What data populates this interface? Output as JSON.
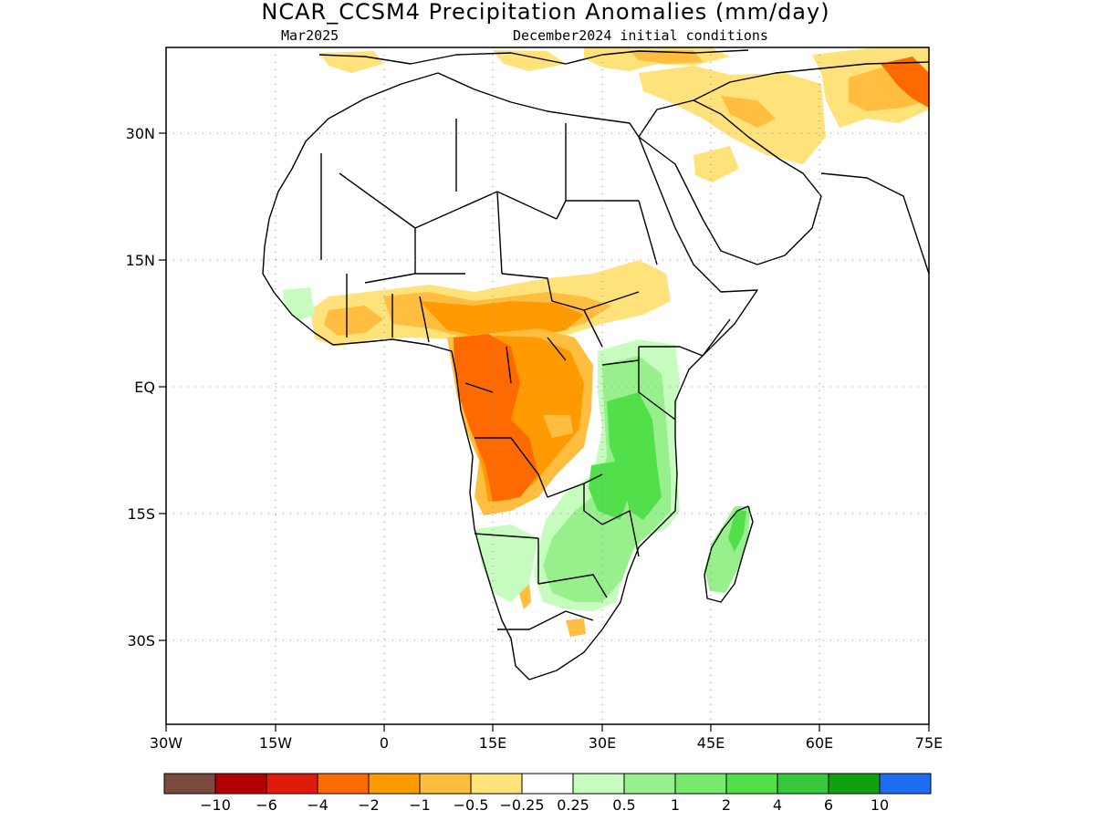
{
  "title": "NCAR_CCSM4 Precipitation Anomalies (mm/day)",
  "subtitle_left": "Mar2025",
  "subtitle_right": "December2024 initial conditions",
  "x_ticks": [
    "30W",
    "15W",
    "0",
    "15E",
    "30E",
    "45E",
    "60E",
    "75E"
  ],
  "y_ticks": [
    "30N",
    "15N",
    "EQ",
    "15S",
    "30S"
  ],
  "colorbar": {
    "colors": [
      "#7b4a3e",
      "#b30000",
      "#e01b0b",
      "#ff6a00",
      "#ff9b00",
      "#ffbe3f",
      "#ffe27a",
      "#ffffff",
      "#c6fcbe",
      "#98f08c",
      "#78ea6b",
      "#52e04a",
      "#36c83a",
      "#10a10f",
      "#1e6cf0"
    ],
    "labels": [
      "-10",
      "-6",
      "-4",
      "-2",
      "-1",
      "-0.5",
      "-0.25",
      "0.25",
      "0.5",
      "1",
      "2",
      "4",
      "6",
      "10"
    ]
  },
  "colors": {
    "dry_strong": "#ff6a00",
    "dry_moderate": "#ff9b00",
    "dry_light": "#ffbe3f",
    "dry_weak": "#ffe27a",
    "wet_weak": "#c6fcbe",
    "wet_light": "#98f08c",
    "wet_moderate": "#52e04a"
  }
}
